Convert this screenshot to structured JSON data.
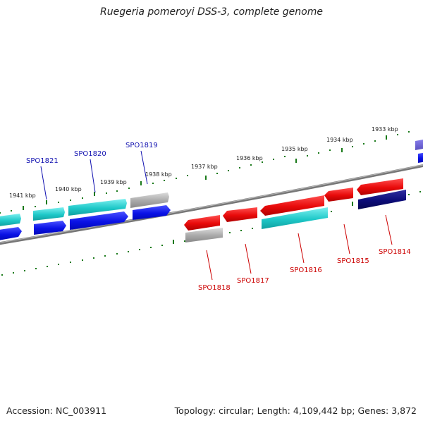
{
  "header": {
    "title": "Ruegeria pomeroyi DSS-3, complete genome"
  },
  "footer": {
    "accession": "Accession: NC_003911",
    "summary": "Topology: circular; Length: 4,109,442 bp; Genes: 3,872"
  },
  "map": {
    "kbp_labels": [
      "1941 kbp",
      "1940 kbp",
      "1939 kbp",
      "1938 kbp",
      "1937 kbp",
      "1936 kbp",
      "1935 kbp",
      "1934 kbp",
      "1933 kbp"
    ],
    "genes_top": [
      "SPO1821",
      "SPO1820",
      "SPO1819"
    ],
    "genes_bottom": [
      "SPO1818",
      "SPO1817",
      "SPO1816",
      "SPO1815",
      "SPO1814"
    ],
    "colors": {
      "forward_gene": "#0a12e6",
      "forward_cds": "#1ec8c8",
      "reverse_gene": "#e80a0a",
      "reverse_cds": "#1ec8c8",
      "pseudo": "#a8a8a8",
      "dark_gene": "#0c0c78",
      "backbone": "#808080",
      "ticks": "#1a7a1a",
      "top_label": "#1010b0",
      "bottom_label": "#cc0000"
    }
  }
}
